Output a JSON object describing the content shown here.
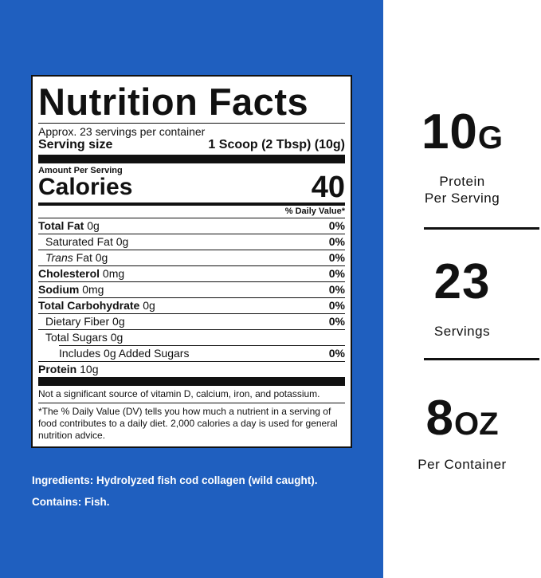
{
  "label": {
    "title": "Nutrition Facts",
    "servings_per_container": "Approx. 23 servings per container",
    "serving_size_label": "Serving size",
    "serving_size_value": "1 Scoop (2 Tbsp) (10g)",
    "amount_per_serving": "Amount Per Serving",
    "calories_label": "Calories",
    "calories_value": "40",
    "daily_value_header": "% Daily Value*",
    "nutrients": [
      {
        "name": "Total Fat",
        "amount": "0g",
        "dv": "0%"
      },
      {
        "name": "Saturated Fat",
        "amount": "0g",
        "dv": "0%"
      },
      {
        "name_italic": "Trans",
        "name": "Fat",
        "amount": "0g",
        "dv": "0%"
      },
      {
        "name": "Cholesterol",
        "amount": "0mg",
        "dv": "0%"
      },
      {
        "name": "Sodium",
        "amount": "0mg",
        "dv": "0%"
      },
      {
        "name": "Total Carbohydrate",
        "amount": "0g",
        "dv": "0%"
      },
      {
        "name": "Dietary Fiber",
        "amount": "0g",
        "dv": "0%"
      },
      {
        "name": "Total Sugars",
        "amount": "0g",
        "dv": ""
      },
      {
        "name": "Includes 0g Added Sugars",
        "amount": "",
        "dv": "0%"
      },
      {
        "name": "Protein",
        "amount": "10g",
        "dv": ""
      }
    ],
    "vitamin_note": "Not a significant source of vitamin D, calcium, iron, and potassium.",
    "dv_footnote": "*The % Daily Value (DV) tells you how much a nutrient in a serving of food contributes to a daily diet. 2,000 calories a day is used for general nutrition advice."
  },
  "ingredients": {
    "ingredients_text": "Ingredients: Hydrolyzed fish cod collagen (wild caught).",
    "contains_text": "Contains: Fish."
  },
  "stats": [
    {
      "number": "10",
      "unit": "G",
      "label_line1": "Protein",
      "label_line2": "Per Serving"
    },
    {
      "number": "23",
      "unit": "",
      "label_line1": "Servings",
      "label_line2": ""
    },
    {
      "number": "8",
      "unit": "OZ",
      "label_line1": "Per Container",
      "label_line2": ""
    }
  ],
  "colors": {
    "panel_blue": "#1f5fbf",
    "ink": "#111111",
    "background": "#ffffff"
  }
}
